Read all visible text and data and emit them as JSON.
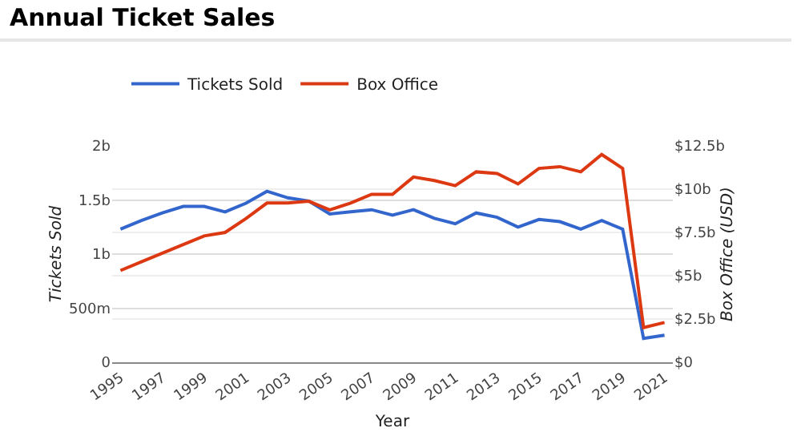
{
  "chart_data": {
    "type": "line",
    "title": "Annual Ticket Sales",
    "xlabel": "Year",
    "ylabel": "Tickets Sold",
    "y2label": "Box Office (USD)",
    "x": [
      1995,
      1996,
      1997,
      1998,
      1999,
      2000,
      2001,
      2002,
      2003,
      2004,
      2005,
      2006,
      2007,
      2008,
      2009,
      2010,
      2011,
      2012,
      2013,
      2014,
      2015,
      2016,
      2017,
      2018,
      2019,
      2020,
      2021
    ],
    "series": [
      {
        "name": "Tickets Sold",
        "color": "#3366cc",
        "values": [
          1230000000,
          1310000000,
          1380000000,
          1440000000,
          1440000000,
          1390000000,
          1470000000,
          1580000000,
          1520000000,
          1490000000,
          1370000000,
          1390000000,
          1410000000,
          1360000000,
          1410000000,
          1330000000,
          1280000000,
          1380000000,
          1340000000,
          1250000000,
          1320000000,
          1300000000,
          1230000000,
          1310000000,
          1230000000,
          220000000,
          250000000
        ]
      },
      {
        "name": "Box Office",
        "color": "#dc3912",
        "axis": "y2",
        "values": [
          5300000000,
          5800000000,
          6300000000,
          6800000000,
          7300000000,
          7500000000,
          8300000000,
          9200000000,
          9200000000,
          9300000000,
          8800000000,
          9200000000,
          9700000000,
          9700000000,
          10700000000,
          10500000000,
          10200000000,
          11000000000,
          10900000000,
          10300000000,
          11200000000,
          11300000000,
          11000000000,
          12000000000,
          11200000000,
          2000000000,
          2300000000
        ]
      }
    ],
    "xlim": [
      1994.6,
      2021.4
    ],
    "xticks": [
      1995,
      1997,
      1999,
      2001,
      2003,
      2005,
      2007,
      2009,
      2011,
      2013,
      2015,
      2017,
      2019,
      2021
    ],
    "ylim": [
      0,
      2000000000
    ],
    "yticks": [
      0,
      {
        "value": 500000000,
        "label": "500m"
      },
      {
        "value": 1000000000,
        "label": "1b"
      },
      {
        "value": 1500000000,
        "label": "1.5b"
      },
      {
        "value": 2000000000,
        "label": "2b"
      }
    ],
    "y2lim": [
      0,
      12500000000
    ],
    "y2ticks": [
      {
        "value": 0,
        "label": "$0"
      },
      {
        "value": 2500000000,
        "label": "$2.5b"
      },
      {
        "value": 5000000000,
        "label": "$5b"
      },
      {
        "value": 7500000000,
        "label": "$7.5b"
      },
      {
        "value": 10000000000,
        "label": "$10b"
      },
      {
        "value": 12500000000,
        "label": "$12.5b"
      }
    ],
    "grid": "y",
    "legend": "top",
    "marker": "none",
    "line_style": "solid"
  }
}
